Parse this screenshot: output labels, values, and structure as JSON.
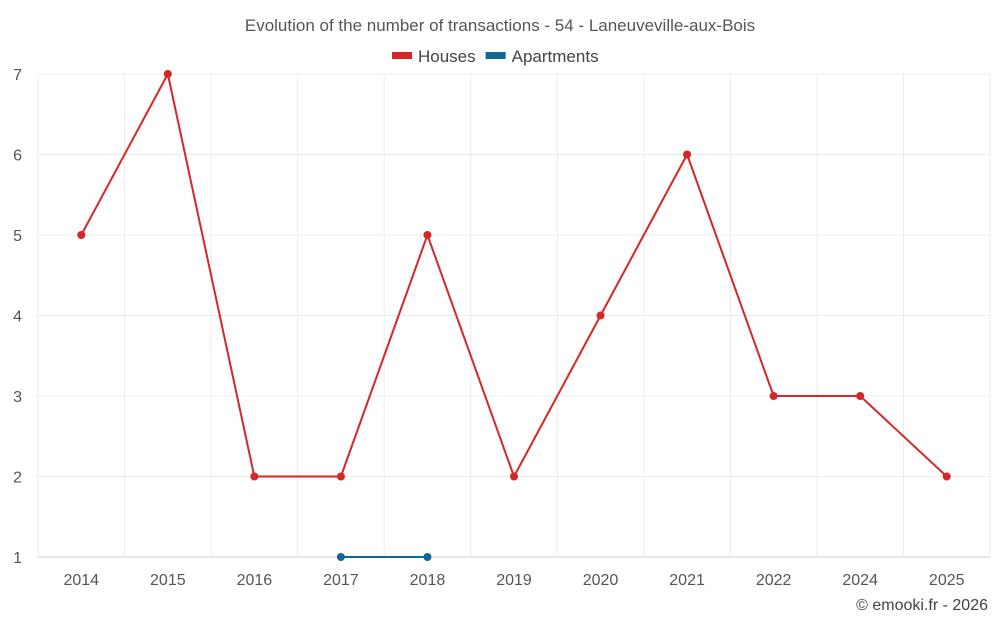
{
  "chart_data": {
    "type": "line",
    "title": "Evolution of the number of transactions - 54 - Laneuveville-aux-Bois",
    "categories": [
      "2014",
      "2015",
      "2016",
      "2017",
      "2018",
      "2019",
      "2020",
      "2021",
      "2022",
      "2024",
      "2025"
    ],
    "ylim": [
      1,
      7
    ],
    "yticks": [
      1,
      2,
      3,
      4,
      5,
      6,
      7
    ],
    "grid": true,
    "legend_position": "top-center",
    "series": [
      {
        "name": "Houses",
        "color": "#d62728",
        "values": [
          5,
          7,
          2,
          2,
          5,
          2,
          4,
          6,
          3,
          3,
          2
        ]
      },
      {
        "name": "Apartments",
        "color": "#0e6699",
        "values": [
          null,
          null,
          null,
          1,
          1,
          null,
          null,
          null,
          null,
          null,
          null
        ]
      }
    ]
  },
  "credit": "© emooki.fr - 2026"
}
